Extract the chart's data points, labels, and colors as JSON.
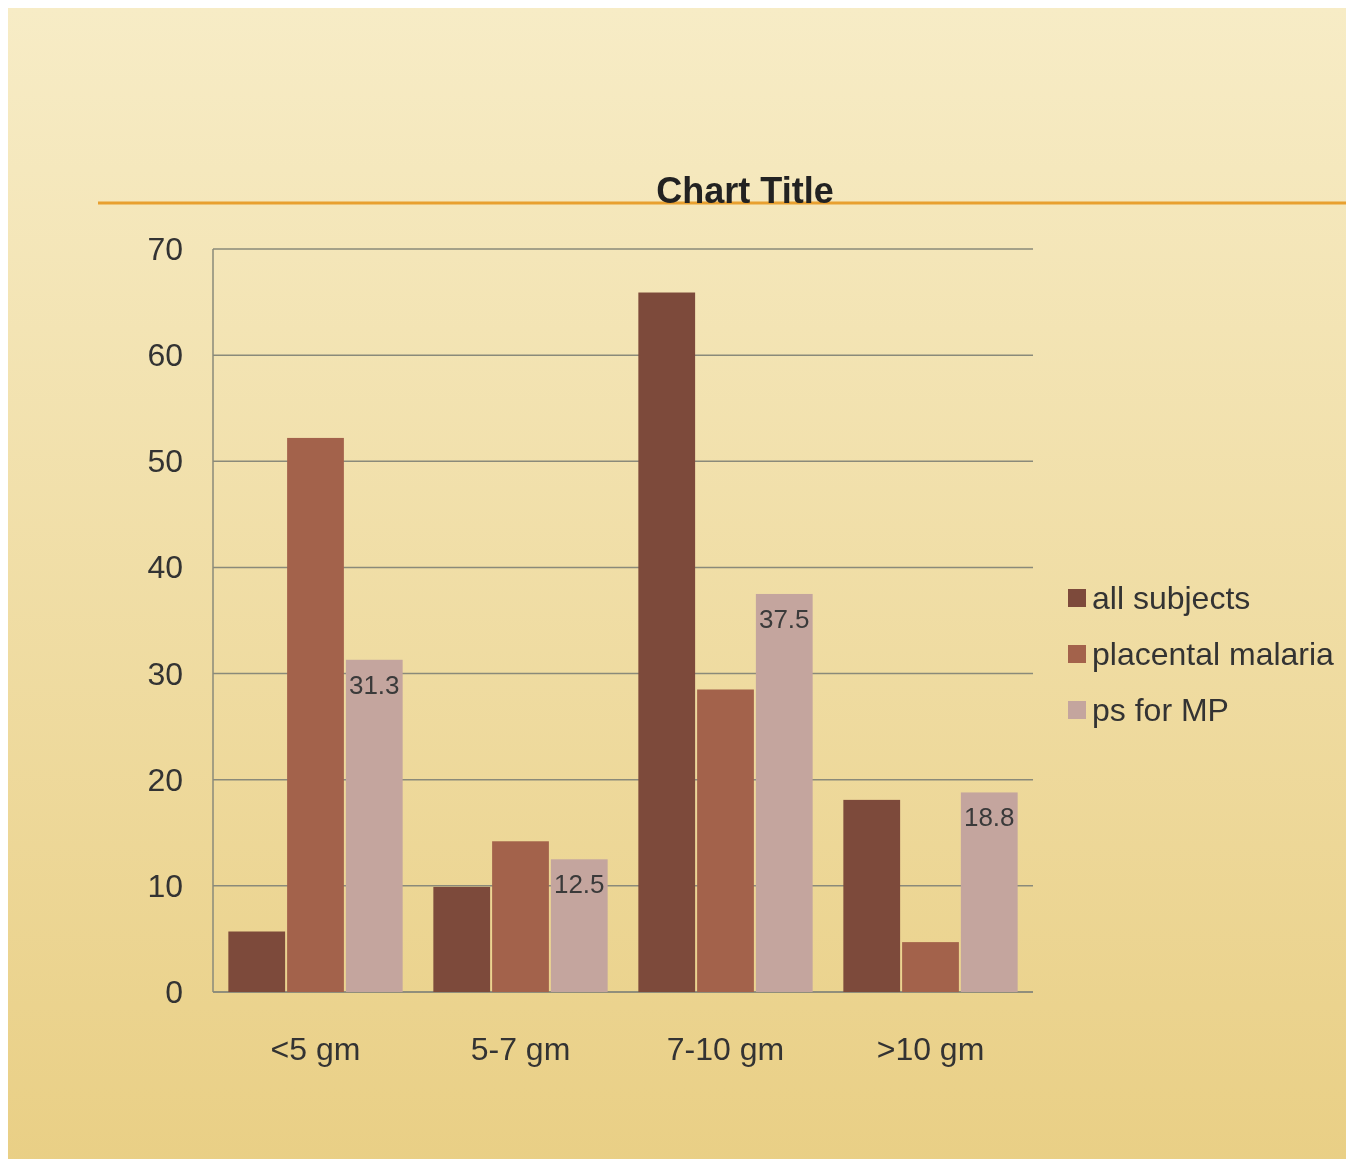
{
  "chart_data": {
    "type": "bar",
    "title": "Chart Title",
    "categories": [
      "<5 gm",
      "5-7 gm",
      "7-10 gm",
      ">10 gm"
    ],
    "series": [
      {
        "name": "all subjects",
        "color": "#7d4a3b",
        "values": [
          5.7,
          9.9,
          65.9,
          18.1
        ]
      },
      {
        "name": "placental malaria",
        "color": "#a3624b",
        "values": [
          52.2,
          14.2,
          28.5,
          4.7
        ]
      },
      {
        "name": "ps for MP",
        "color": "#c4a59e",
        "values": [
          31.3,
          12.5,
          37.5,
          18.8
        ],
        "value_labels": [
          "31.3",
          "12.5",
          "37.5",
          "18.8"
        ]
      }
    ],
    "ylim": [
      0,
      70
    ],
    "yticks": [
      0,
      10,
      20,
      30,
      40,
      50,
      60,
      70
    ],
    "grid": "y",
    "legend": "right"
  }
}
